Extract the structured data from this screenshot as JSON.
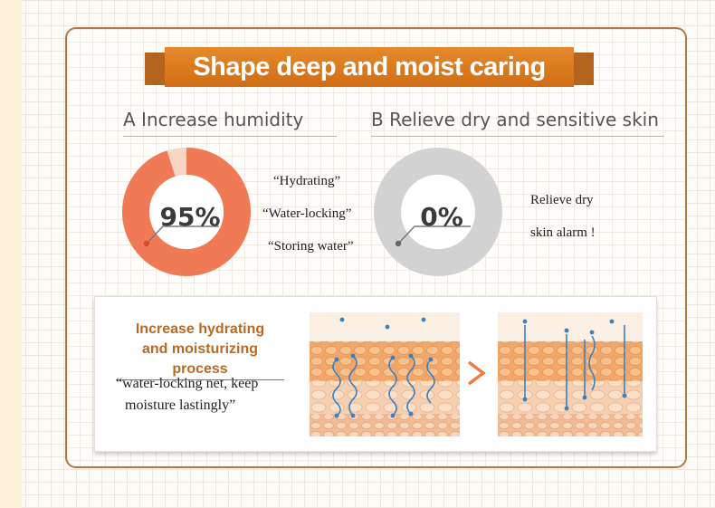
{
  "banner": {
    "title": "Shape deep and moist caring"
  },
  "section_a": {
    "heading": "A  Increase humidity",
    "percent": "95%",
    "percent_value": 95,
    "quotes": [
      "“Hydrating”",
      "“Water-locking”",
      "“Storing water”"
    ]
  },
  "section_b": {
    "heading": "B  Relieve dry and sensitive skin",
    "percent": "0%",
    "percent_value": 0,
    "lines": [
      "Relieve dry",
      "skin alarm !"
    ]
  },
  "process": {
    "title_line1": "Increase hydrating",
    "title_line2": "and moisturizing process",
    "desc_line1": "“water-locking net, keep",
    "desc_line2": "moisture lastingly”"
  },
  "colors": {
    "accent_orange": "#e0782a",
    "donut_a": "#f07a55",
    "donut_b": "#d2d2d2",
    "border_brown": "#b07a49",
    "water_blue": "#3c80c0"
  }
}
